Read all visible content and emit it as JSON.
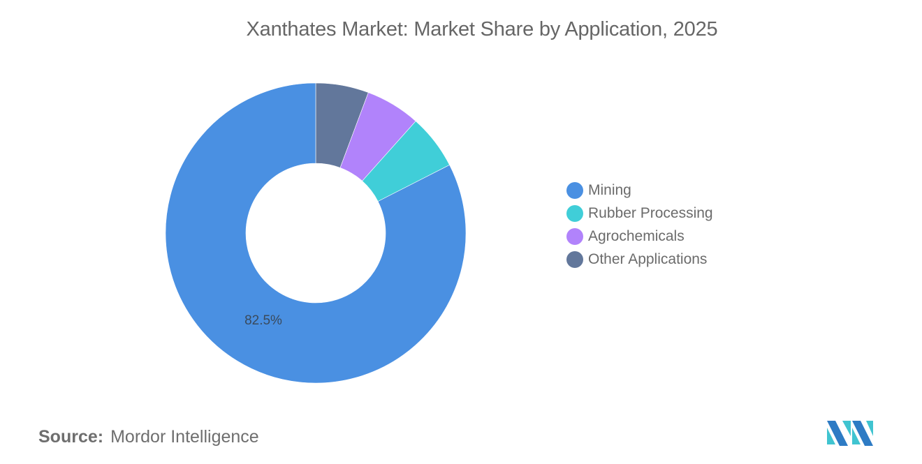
{
  "header": {
    "title": "Xanthates Market: Market Share by Application, 2025"
  },
  "chart_data": {
    "type": "pie",
    "variant": "donut",
    "title": "Xanthates Market: Market Share by Application, 2025",
    "categories": [
      "Mining",
      "Rubber Processing",
      "Agrochemicals",
      "Other Applications"
    ],
    "values": [
      82.5,
      5.9,
      5.9,
      5.7
    ],
    "unit": "%",
    "colors": [
      "#4a90e2",
      "#40ced8",
      "#b183fb",
      "#62779b"
    ],
    "data_labels": [
      {
        "category": "Mining",
        "text": "82.5%"
      }
    ],
    "legend_position": "right",
    "start_angle": 0,
    "direction": "counterclockwise-from-top-order: Other, Agrochemicals, Rubber, Mining clockwise"
  },
  "legend": {
    "items": [
      {
        "label": "Mining",
        "color": "#4a90e2"
      },
      {
        "label": "Rubber Processing",
        "color": "#40ced8"
      },
      {
        "label": "Agrochemicals",
        "color": "#b183fb"
      },
      {
        "label": "Other Applications",
        "color": "#62779b"
      }
    ]
  },
  "labels": {
    "mining_value": "82.5%"
  },
  "footer": {
    "source_label": "Source:",
    "source_value": "Mordor Intelligence",
    "logo": "mordor-intelligence-logo"
  }
}
